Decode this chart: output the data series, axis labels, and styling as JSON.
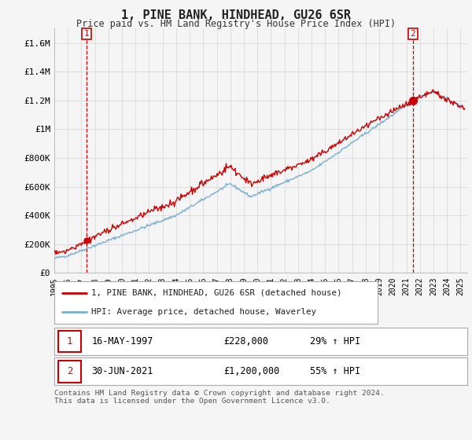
{
  "title": "1, PINE BANK, HINDHEAD, GU26 6SR",
  "subtitle": "Price paid vs. HM Land Registry's House Price Index (HPI)",
  "ylim": [
    0,
    1700000
  ],
  "yticks": [
    0,
    200000,
    400000,
    600000,
    800000,
    1000000,
    1200000,
    1400000,
    1600000
  ],
  "ytick_labels": [
    "£0",
    "£200K",
    "£400K",
    "£600K",
    "£800K",
    "£1M",
    "£1.2M",
    "£1.4M",
    "£1.6M"
  ],
  "sale1": {
    "date_num": 1997.38,
    "price": 228000,
    "label": "1"
  },
  "sale2": {
    "date_num": 2021.49,
    "price": 1200000,
    "label": "2"
  },
  "legend_line1": "1, PINE BANK, HINDHEAD, GU26 6SR (detached house)",
  "legend_line2": "HPI: Average price, detached house, Waverley",
  "table_row1": [
    "1",
    "16-MAY-1997",
    "£228,000",
    "29% ↑ HPI"
  ],
  "table_row2": [
    "2",
    "30-JUN-2021",
    "£1,200,000",
    "55% ↑ HPI"
  ],
  "footnote": "Contains HM Land Registry data © Crown copyright and database right 2024.\nThis data is licensed under the Open Government Licence v3.0.",
  "line_color_red": "#cc0000",
  "line_color_blue": "#7ab0d4",
  "grid_color": "#dddddd",
  "bg_color": "#f5f5f5"
}
